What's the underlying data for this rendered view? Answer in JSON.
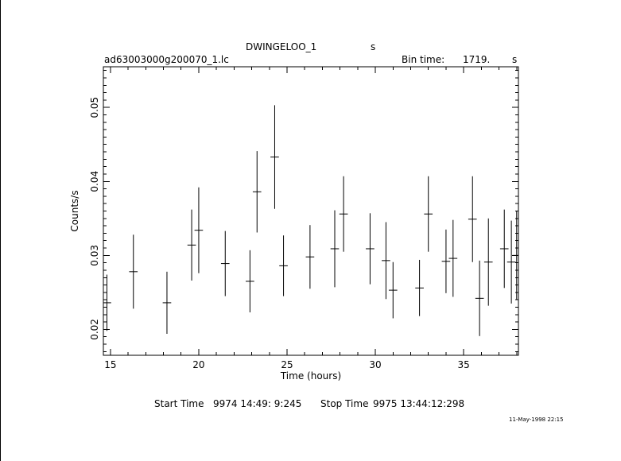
{
  "header": {
    "object_name": "DWINGELOO_1",
    "object_unit": "s",
    "file_name": "ad63003000g200070_1.lc",
    "bin_label": "Bin time:",
    "bin_value": "1719.",
    "bin_unit": "s"
  },
  "footer": {
    "start_label": "Start Time",
    "start_value": "9974 14:49: 9:245",
    "stop_label": "Stop Time",
    "stop_value": "9975 13:44:12:298",
    "date_stamp": "11-May-1998 22:15"
  },
  "chart_data": {
    "type": "scatter",
    "xlabel": "Time (hours)",
    "ylabel": "Counts/s",
    "xlim": [
      14.6,
      38.1
    ],
    "ylim": [
      0.0165,
      0.0555
    ],
    "xticks": [
      15,
      20,
      25,
      30,
      35
    ],
    "yticks": [
      0.02,
      0.03,
      0.04,
      0.05
    ],
    "x_tick_labels": [
      "15",
      "20",
      "25",
      "30",
      "35"
    ],
    "y_tick_labels": [
      "0.02",
      "0.03",
      "0.04",
      "0.05"
    ],
    "grid": false,
    "points": [
      {
        "x": 14.8,
        "xerr": 0.24,
        "y": 0.0236,
        "yerr": 0.0038
      },
      {
        "x": 16.3,
        "xerr": 0.24,
        "y": 0.0278,
        "yerr": 0.005
      },
      {
        "x": 18.2,
        "xerr": 0.24,
        "y": 0.0236,
        "yerr": 0.0042
      },
      {
        "x": 19.6,
        "xerr": 0.24,
        "y": 0.0314,
        "yerr": 0.0048
      },
      {
        "x": 20.0,
        "xerr": 0.24,
        "y": 0.0334,
        "yerr": 0.0058
      },
      {
        "x": 21.5,
        "xerr": 0.24,
        "y": 0.0289,
        "yerr": 0.0044
      },
      {
        "x": 22.9,
        "xerr": 0.24,
        "y": 0.0265,
        "yerr": 0.0042
      },
      {
        "x": 23.3,
        "xerr": 0.24,
        "y": 0.0386,
        "yerr": 0.0055
      },
      {
        "x": 24.3,
        "xerr": 0.24,
        "y": 0.0433,
        "yerr": 0.007
      },
      {
        "x": 24.8,
        "xerr": 0.24,
        "y": 0.0286,
        "yerr": 0.0041
      },
      {
        "x": 26.3,
        "xerr": 0.24,
        "y": 0.0298,
        "yerr": 0.0043
      },
      {
        "x": 27.7,
        "xerr": 0.24,
        "y": 0.0309,
        "yerr": 0.0052
      },
      {
        "x": 28.2,
        "xerr": 0.24,
        "y": 0.0356,
        "yerr": 0.0051
      },
      {
        "x": 29.7,
        "xerr": 0.24,
        "y": 0.0309,
        "yerr": 0.0048
      },
      {
        "x": 30.6,
        "xerr": 0.24,
        "y": 0.0293,
        "yerr": 0.0052
      },
      {
        "x": 31.0,
        "xerr": 0.24,
        "y": 0.0253,
        "yerr": 0.0038
      },
      {
        "x": 32.5,
        "xerr": 0.24,
        "y": 0.0256,
        "yerr": 0.0038
      },
      {
        "x": 33.0,
        "xerr": 0.24,
        "y": 0.0356,
        "yerr": 0.0051
      },
      {
        "x": 34.0,
        "xerr": 0.24,
        "y": 0.0292,
        "yerr": 0.0043
      },
      {
        "x": 34.4,
        "xerr": 0.24,
        "y": 0.0296,
        "yerr": 0.0052
      },
      {
        "x": 35.5,
        "xerr": 0.24,
        "y": 0.0349,
        "yerr": 0.0058
      },
      {
        "x": 35.9,
        "xerr": 0.24,
        "y": 0.0242,
        "yerr": 0.0051
      },
      {
        "x": 36.4,
        "xerr": 0.24,
        "y": 0.0291,
        "yerr": 0.0059
      },
      {
        "x": 37.3,
        "xerr": 0.24,
        "y": 0.0309,
        "yerr": 0.0053
      },
      {
        "x": 37.7,
        "xerr": 0.24,
        "y": 0.0291,
        "yerr": 0.0056
      },
      {
        "x": 38.0,
        "xerr": 0.24,
        "y": 0.03,
        "yerr": 0.006
      }
    ]
  }
}
